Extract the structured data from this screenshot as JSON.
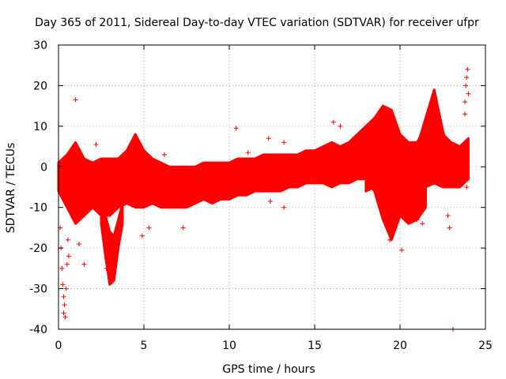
{
  "chart_data": {
    "type": "scatter",
    "title": "Day 365 of 2011, Sidereal Day-to-day VTEC variation (SDTVAR) for receiver ufpr",
    "xlabel": "GPS time / hours",
    "ylabel": "SDTVAR / TECUs",
    "xlim": [
      0,
      25
    ],
    "ylim": [
      -40,
      30
    ],
    "xticks": [
      0,
      5,
      10,
      15,
      20,
      25
    ],
    "yticks": [
      -40,
      -30,
      -20,
      -10,
      0,
      10,
      20,
      30
    ],
    "grid": true,
    "marker": "+",
    "series": [
      {
        "name": "SDTVAR",
        "color": "#ff0000",
        "bands": [
          {
            "x": [
              0.0,
              0.5,
              1.0,
              1.5,
              2.0,
              2.5,
              3.0,
              3.5,
              4.0,
              4.5,
              5.0,
              5.5,
              6.0,
              6.5,
              7.0,
              7.5,
              8.0,
              8.5,
              9.0,
              9.5,
              10.0,
              10.5,
              11.0,
              11.5,
              12.0,
              12.5,
              13.0,
              13.5,
              14.0,
              14.5,
              15.0,
              15.5,
              16.0,
              16.5,
              17.0,
              17.5,
              18.0,
              18.5,
              19.0,
              19.5,
              20.0,
              20.5,
              21.0,
              21.5,
              22.0,
              22.5,
              23.0,
              23.5,
              24.0
            ],
            "low": [
              -6,
              -10,
              -14,
              -12,
              -10,
              -12,
              -12,
              -10,
              -9,
              -10,
              -10,
              -9,
              -10,
              -10,
              -10,
              -10,
              -9,
              -8,
              -9,
              -8,
              -8,
              -7,
              -7,
              -6,
              -6,
              -6,
              -6,
              -5,
              -5,
              -4,
              -4,
              -4,
              -5,
              -4,
              -4,
              -3,
              -3,
              -3,
              -3,
              -9,
              -9,
              -10,
              -5,
              -5,
              -4,
              -5,
              -5,
              -5,
              -3
            ],
            "high": [
              1,
              3,
              6,
              2,
              1,
              2,
              2,
              2,
              4,
              8,
              4,
              2,
              1,
              0,
              0,
              0,
              0,
              1,
              1,
              1,
              1,
              2,
              2,
              2,
              3,
              3,
              3,
              3,
              3,
              4,
              4,
              5,
              6,
              5,
              6,
              8,
              10,
              12,
              15,
              14,
              8,
              6,
              6,
              10,
              14,
              8,
              6,
              5,
              7
            ]
          },
          {
            "x": [
              2.5,
              2.75,
              3.0,
              3.25,
              3.5,
              3.75
            ],
            "low": [
              -14,
              -22,
              -29,
              -28,
              -20,
              -14
            ],
            "high": [
              -8,
              -12,
              -16,
              -17,
              -13,
              -9
            ]
          },
          {
            "x": [
              17.5,
              18.0,
              18.5,
              19.0,
              19.5,
              20.0,
              20.5,
              21.0,
              21.5,
              22.0,
              22.5,
              23.0
            ],
            "low": [
              -1,
              -3,
              -6,
              -13,
              -18,
              -12,
              -6,
              0,
              6,
              13,
              3,
              -2
            ],
            "high": [
              1,
              -1,
              -2,
              -6,
              -10,
              -6,
              0,
              5,
              12,
              19,
              9,
              2
            ]
          },
          {
            "x": [
              18.0,
              18.5,
              19.0,
              19.5,
              20.0,
              20.5,
              21.0,
              21.5
            ],
            "low": [
              -6,
              -5,
              -7,
              -9,
              -12,
              -14,
              -13,
              -10
            ],
            "high": [
              2,
              4,
              6,
              2,
              -2,
              -5,
              -6,
              -3
            ]
          }
        ],
        "points": [
          {
            "x": 0.1,
            "y": -15
          },
          {
            "x": 0.15,
            "y": -20
          },
          {
            "x": 0.2,
            "y": -25
          },
          {
            "x": 0.25,
            "y": -29
          },
          {
            "x": 0.3,
            "y": -32
          },
          {
            "x": 0.35,
            "y": -34
          },
          {
            "x": 0.4,
            "y": -37
          },
          {
            "x": 0.3,
            "y": -36
          },
          {
            "x": 0.45,
            "y": -30
          },
          {
            "x": 0.5,
            "y": -24
          },
          {
            "x": 0.55,
            "y": -18
          },
          {
            "x": 0.6,
            "y": -22
          },
          {
            "x": 1.0,
            "y": 16.5
          },
          {
            "x": 1.5,
            "y": -24
          },
          {
            "x": 1.2,
            "y": -19
          },
          {
            "x": 2.2,
            "y": 5.5
          },
          {
            "x": 2.8,
            "y": -25
          },
          {
            "x": 4.9,
            "y": -17
          },
          {
            "x": 5.3,
            "y": -15
          },
          {
            "x": 6.2,
            "y": 3
          },
          {
            "x": 7.3,
            "y": -15
          },
          {
            "x": 10.4,
            "y": 9.5
          },
          {
            "x": 11.1,
            "y": 3.5
          },
          {
            "x": 12.3,
            "y": 7
          },
          {
            "x": 12.4,
            "y": -8.5
          },
          {
            "x": 13.2,
            "y": 6
          },
          {
            "x": 13.2,
            "y": -10
          },
          {
            "x": 16.5,
            "y": 10
          },
          {
            "x": 20.1,
            "y": -20.5
          },
          {
            "x": 21.3,
            "y": -14
          },
          {
            "x": 22.8,
            "y": -12
          },
          {
            "x": 22.9,
            "y": -15
          },
          {
            "x": 23.1,
            "y": -40
          },
          {
            "x": 23.5,
            "y": -4
          },
          {
            "x": 23.8,
            "y": 16
          },
          {
            "x": 23.8,
            "y": 13
          },
          {
            "x": 23.85,
            "y": 20
          },
          {
            "x": 23.9,
            "y": 22
          },
          {
            "x": 23.95,
            "y": 24
          },
          {
            "x": 24.0,
            "y": 18
          },
          {
            "x": 23.9,
            "y": -5
          },
          {
            "x": 21.0,
            "y": -13
          },
          {
            "x": 19.4,
            "y": -18
          },
          {
            "x": 16.1,
            "y": 11
          }
        ]
      }
    ]
  }
}
